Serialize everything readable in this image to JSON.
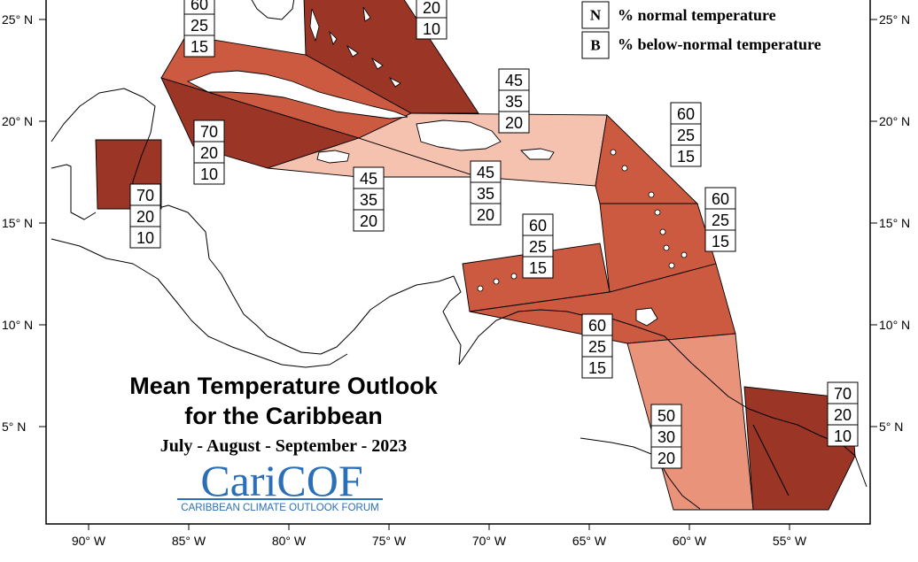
{
  "title": {
    "line1": "Mean Temperature Outlook",
    "line2": "for the Caribbean",
    "period": "July - August - September - 2023"
  },
  "logo": {
    "text": "CariCOF",
    "tagline": "CARIBBEAN CLIMATE OUTLOOK FORUM"
  },
  "legend": [
    {
      "key": "N",
      "label": "% normal temperature"
    },
    {
      "key": "B",
      "label": "% below-normal temperature"
    }
  ],
  "axes": {
    "lat_ticks": [
      "25° N",
      "20° N",
      "15° N",
      "10° N",
      "5° N"
    ],
    "lon_ticks": [
      "90° W",
      "85° W",
      "80° W",
      "75° W",
      "70° W",
      "65° W",
      "60° W",
      "55° W"
    ]
  },
  "colors": {
    "above_70": "#9b3526",
    "above_60": "#cc5a40",
    "above_50": "#e8937a",
    "above_45": "#f6c2b0",
    "ocean": "#ffffff"
  },
  "probability_boxes": [
    {
      "id": "north-cuba",
      "values": [
        "60",
        "25",
        "15"
      ]
    },
    {
      "id": "bahamas",
      "values": [
        "20",
        "10"
      ]
    },
    {
      "id": "puerto-rico-north",
      "values": [
        "45",
        "35",
        "20"
      ]
    },
    {
      "id": "leeward-islands",
      "values": [
        "60",
        "25",
        "15"
      ]
    },
    {
      "id": "cuba-west",
      "values": [
        "70",
        "20",
        "10"
      ]
    },
    {
      "id": "belize",
      "values": [
        "70",
        "20",
        "10"
      ]
    },
    {
      "id": "jamaica",
      "values": [
        "45",
        "35",
        "20"
      ]
    },
    {
      "id": "hispaniola",
      "values": [
        "45",
        "35",
        "20"
      ]
    },
    {
      "id": "windward-islands",
      "values": [
        "60",
        "25",
        "15"
      ]
    },
    {
      "id": "abc-islands",
      "values": [
        "60",
        "25",
        "15"
      ]
    },
    {
      "id": "trinidad",
      "values": [
        "60",
        "25",
        "15"
      ]
    },
    {
      "id": "guyana",
      "values": [
        "50",
        "30",
        "20"
      ]
    },
    {
      "id": "french-guiana",
      "values": [
        "70",
        "20",
        "10"
      ]
    }
  ]
}
